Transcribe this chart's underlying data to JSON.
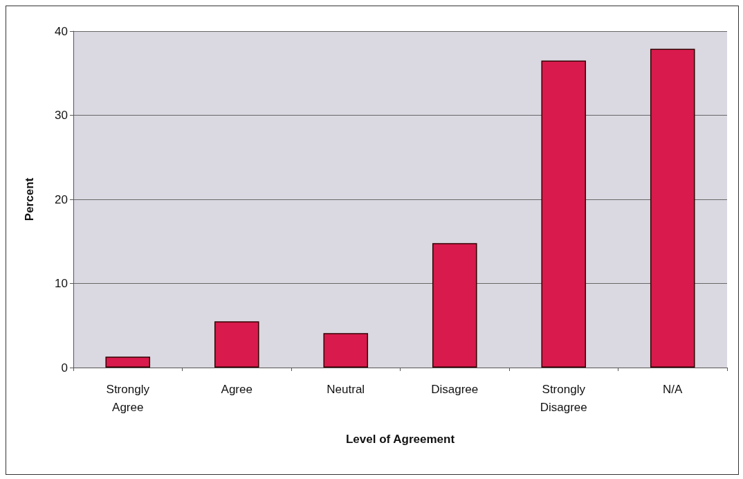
{
  "chart_data": {
    "type": "bar",
    "xlabel": "Level of Agreement",
    "ylabel": "Percent",
    "categories": [
      "Strongly\nAgree",
      "Agree",
      "Neutral",
      "Disagree",
      "Strongly\nDisagree",
      "N/A"
    ],
    "values": [
      1.3,
      5.5,
      4.1,
      14.8,
      36.5,
      37.9
    ],
    "color": "#d81a4c",
    "ylim": [
      0,
      40
    ],
    "yticks": [
      0,
      10,
      20,
      30,
      40
    ],
    "grid": "y"
  }
}
